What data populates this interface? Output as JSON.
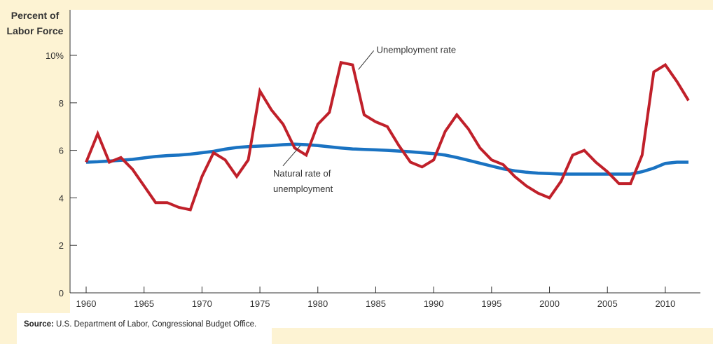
{
  "chart_data": {
    "type": "line",
    "ylabel": [
      "Percent of",
      "Labor Force"
    ],
    "xlabel": "",
    "ylim": [
      0,
      10
    ],
    "xlim": [
      1960,
      2012
    ],
    "grid": false,
    "y_ticks": [
      {
        "value": 0,
        "label": "0"
      },
      {
        "value": 2,
        "label": "2"
      },
      {
        "value": 4,
        "label": "4"
      },
      {
        "value": 6,
        "label": "6"
      },
      {
        "value": 8,
        "label": "8"
      },
      {
        "value": 10,
        "label": "10%"
      }
    ],
    "x_ticks": [
      {
        "value": 1960,
        "label": "1960"
      },
      {
        "value": 1965,
        "label": "1965"
      },
      {
        "value": 1970,
        "label": "1970"
      },
      {
        "value": 1975,
        "label": "1975"
      },
      {
        "value": 1980,
        "label": "1980"
      },
      {
        "value": 1985,
        "label": "1985"
      },
      {
        "value": 1990,
        "label": "1990"
      },
      {
        "value": 1995,
        "label": "1995"
      },
      {
        "value": 2000,
        "label": "2000"
      },
      {
        "value": 2005,
        "label": "2005"
      },
      {
        "value": 2010,
        "label": "2010"
      }
    ],
    "x": [
      1960,
      1961,
      1962,
      1963,
      1964,
      1965,
      1966,
      1967,
      1968,
      1969,
      1970,
      1971,
      1972,
      1973,
      1974,
      1975,
      1976,
      1977,
      1978,
      1979,
      1980,
      1981,
      1982,
      1983,
      1984,
      1985,
      1986,
      1987,
      1988,
      1989,
      1990,
      1991,
      1992,
      1993,
      1994,
      1995,
      1996,
      1997,
      1998,
      1999,
      2000,
      2001,
      2002,
      2003,
      2004,
      2005,
      2006,
      2007,
      2008,
      2009,
      2010,
      2011,
      2012
    ],
    "series": [
      {
        "name": "Unemployment rate",
        "color": "#c0202a",
        "values": [
          5.5,
          6.7,
          5.5,
          5.7,
          5.2,
          4.5,
          3.8,
          3.8,
          3.6,
          3.5,
          4.9,
          5.9,
          5.6,
          4.9,
          5.6,
          8.5,
          7.7,
          7.1,
          6.1,
          5.8,
          7.1,
          7.6,
          9.7,
          9.6,
          7.5,
          7.2,
          7.0,
          6.2,
          5.5,
          5.3,
          5.6,
          6.8,
          7.5,
          6.9,
          6.1,
          5.6,
          5.4,
          4.9,
          4.5,
          4.2,
          4.0,
          4.7,
          5.8,
          6.0,
          5.5,
          5.1,
          4.6,
          4.6,
          5.8,
          9.3,
          9.6,
          8.9,
          8.1
        ]
      },
      {
        "name": "Natural rate of unemployment",
        "color": "#1a73c2",
        "values": [
          5.5,
          5.52,
          5.55,
          5.58,
          5.62,
          5.68,
          5.74,
          5.78,
          5.8,
          5.84,
          5.9,
          5.96,
          6.05,
          6.12,
          6.16,
          6.18,
          6.2,
          6.24,
          6.26,
          6.24,
          6.2,
          6.15,
          6.1,
          6.06,
          6.04,
          6.02,
          6.0,
          5.97,
          5.94,
          5.9,
          5.86,
          5.8,
          5.7,
          5.58,
          5.46,
          5.34,
          5.22,
          5.14,
          5.08,
          5.04,
          5.02,
          5.0,
          5.0,
          5.0,
          5.0,
          5.0,
          5.0,
          5.0,
          5.1,
          5.25,
          5.45,
          5.5,
          5.5
        ]
      }
    ],
    "annotations": [
      {
        "lines": [
          "Unemployment rate"
        ],
        "series": 0,
        "point_x": 1983.5,
        "point_y": 9.4
      },
      {
        "lines": [
          "Natural rate of",
          "unemployment"
        ],
        "series": 1,
        "point_x": 1978.5,
        "point_y": 6.2
      }
    ]
  },
  "source": {
    "label": "Source:",
    "text": " U.S. Department of Labor, Congressional Budget Office."
  }
}
